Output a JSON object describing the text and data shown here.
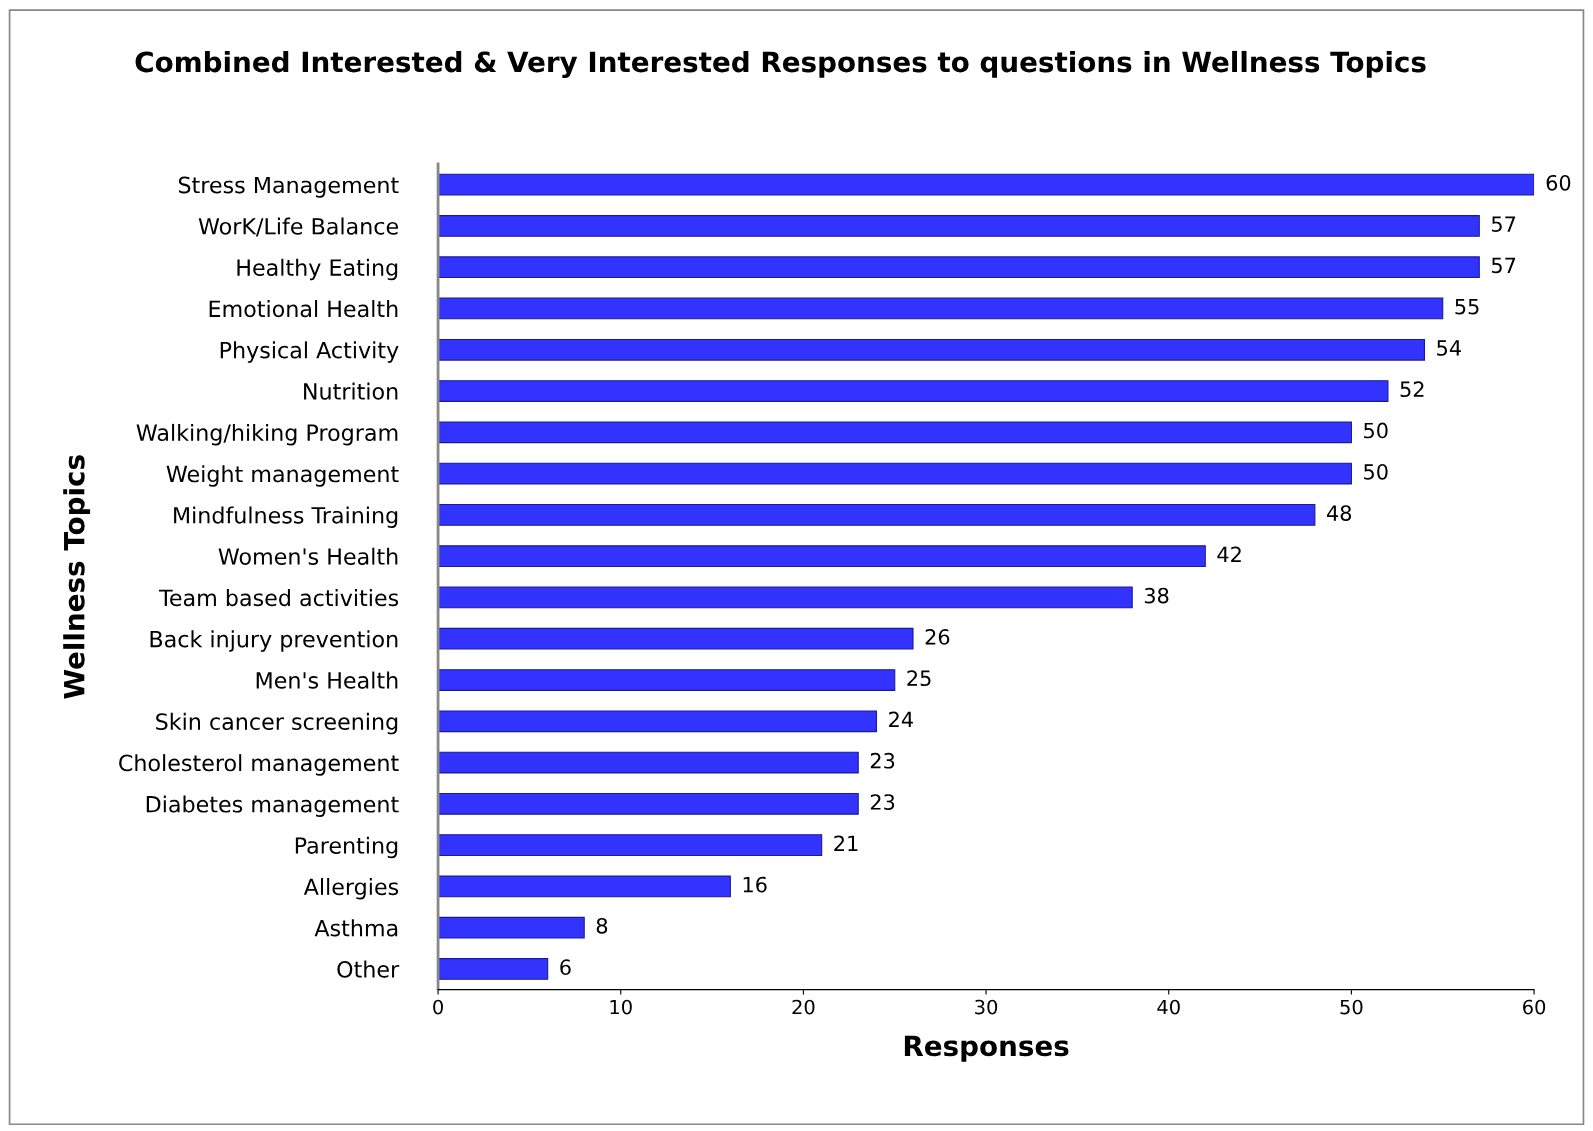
{
  "chart_data": {
    "type": "bar",
    "orientation": "horizontal",
    "title": "Combined Interested & Very Interested Responses to questions in Wellness Topics",
    "xlabel": "Responses",
    "ylabel": "Wellness Topics",
    "categories": [
      "Stress Management",
      "WorK/Life Balance",
      "Healthy Eating",
      "Emotional Health",
      "Physical Activity",
      "Nutrition",
      "Walking/hiking Program",
      "Weight management",
      "Mindfulness Training",
      "Women's Health",
      "Team based activities",
      "Back injury prevention",
      "Men's Health",
      "Skin cancer screening",
      "Cholesterol management",
      "Diabetes management",
      "Parenting",
      "Allergies",
      "Asthma",
      "Other"
    ],
    "values": [
      60,
      57,
      57,
      55,
      54,
      52,
      50,
      50,
      48,
      42,
      38,
      26,
      25,
      24,
      23,
      23,
      21,
      16,
      8,
      6
    ],
    "color": "#3333ff",
    "xlim": [
      0,
      60
    ],
    "xticks": [
      0,
      10,
      20,
      30,
      40,
      50,
      60
    ],
    "data_labels": true,
    "grid": false,
    "legend": false
  }
}
